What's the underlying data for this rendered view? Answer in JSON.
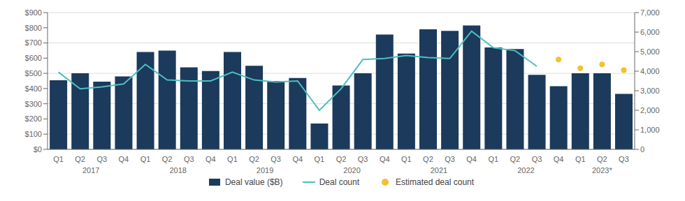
{
  "chart_data": {
    "type": "bar",
    "categories": [
      "Q1",
      "Q2",
      "Q3",
      "Q4",
      "Q1",
      "Q2",
      "Q3",
      "Q4",
      "Q1",
      "Q2",
      "Q3",
      "Q4",
      "Q1",
      "Q2",
      "Q3",
      "Q4",
      "Q1",
      "Q2",
      "Q3",
      "Q4",
      "Q1",
      "Q2",
      "Q3",
      "Q4",
      "Q1",
      "Q2",
      "Q3"
    ],
    "annotations": [
      "2017",
      "2018",
      "2019",
      "2020",
      "2021",
      "2022",
      "2023*"
    ],
    "series": [
      {
        "name": "Deal value ($B)",
        "type": "bar",
        "color": "#1b3a5c",
        "values": [
          455,
          500,
          445,
          480,
          640,
          650,
          540,
          515,
          640,
          550,
          450,
          470,
          170,
          420,
          500,
          755,
          630,
          790,
          780,
          815,
          670,
          660,
          490,
          415,
          500,
          500,
          365
        ]
      },
      {
        "name": "Deal count",
        "type": "line",
        "color": "#4dbfbf",
        "axis": "y2",
        "values": [
          3950,
          3100,
          3200,
          3350,
          4350,
          3550,
          3500,
          3500,
          3950,
          3550,
          3450,
          3500,
          2000,
          3100,
          4600,
          4650,
          4800,
          4700,
          4650,
          6050,
          5200,
          5050,
          4250,
          null,
          null,
          null,
          null
        ]
      },
      {
        "name": "Estimated deal count",
        "type": "scatter",
        "color": "#f0c230",
        "axis": "y2",
        "marker": "circle",
        "values": [
          null,
          null,
          null,
          null,
          null,
          null,
          null,
          null,
          null,
          null,
          null,
          null,
          null,
          null,
          null,
          null,
          null,
          null,
          null,
          null,
          null,
          null,
          null,
          4600,
          4150,
          4350,
          4050
        ]
      }
    ],
    "ylim": [
      0,
      900
    ],
    "yticks": [
      {
        "value": 0,
        "label": "$0"
      },
      {
        "value": 100,
        "label": "$100"
      },
      {
        "value": 200,
        "label": "$200"
      },
      {
        "value": 300,
        "label": "$300"
      },
      {
        "value": 400,
        "label": "$400"
      },
      {
        "value": 500,
        "label": "$500"
      },
      {
        "value": 600,
        "label": "$600"
      },
      {
        "value": 700,
        "label": "$700"
      },
      {
        "value": 800,
        "label": "$800"
      },
      {
        "value": 900,
        "label": "$900"
      }
    ],
    "y2lim": [
      0,
      7000
    ],
    "y2ticks": [
      0,
      {
        "value": 1000,
        "label": "1,000"
      },
      {
        "value": 2000,
        "label": "2,000"
      },
      {
        "value": 3000,
        "label": "3,000"
      },
      {
        "value": 4000,
        "label": "4,000"
      },
      {
        "value": 5000,
        "label": "5,000"
      },
      {
        "value": 6000,
        "label": "6,000"
      },
      {
        "value": 7000,
        "label": "7,000"
      }
    ],
    "grid": true,
    "legend": "bottom"
  }
}
